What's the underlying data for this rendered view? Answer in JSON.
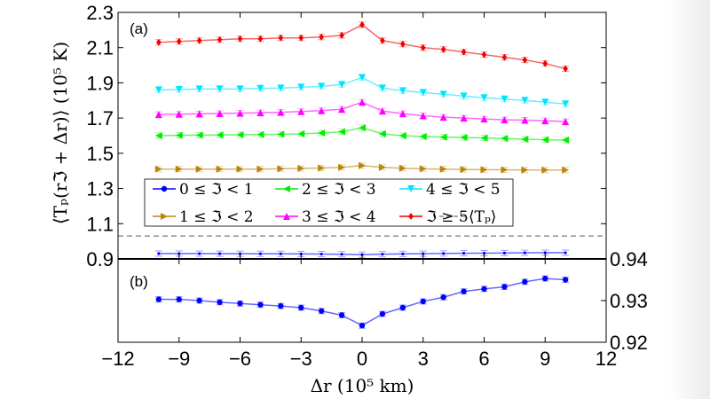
{
  "chart_data": [
    {
      "panel_label": "(a)",
      "type": "line",
      "xlim": [
        -12,
        12
      ],
      "ylim": [
        0.9,
        2.3
      ],
      "ylabel": "⟨Tₚ(rℑ + Δr)⟩ (10⁵ K)",
      "yticks": [
        "0.9",
        "1.1",
        "1.3",
        "1.5",
        "1.7",
        "1.9",
        "2.1",
        "2.3"
      ],
      "grid": false,
      "legend_placement": "lower-left inside",
      "x": [
        -10,
        -9,
        -8,
        -7,
        -6,
        -5,
        -4,
        -3,
        -2,
        -1,
        0,
        1,
        2,
        3,
        4,
        5,
        6,
        7,
        8,
        9,
        10
      ],
      "series": [
        {
          "name": "0 ≤ ℑ < 1",
          "color": "#0000ff",
          "marker": "circle",
          "values": [
            0.9303,
            0.9303,
            0.93,
            0.9296,
            0.9293,
            0.929,
            0.9287,
            0.9283,
            0.9275,
            0.9265,
            0.924,
            0.9268,
            0.9283,
            0.9298,
            0.9308,
            0.9322,
            0.9328,
            0.9333,
            0.9345,
            0.9353,
            0.935
          ]
        },
        {
          "name": "1 ≤ ℑ < 2",
          "color": "#b8860b",
          "marker": "triangle-right",
          "values": [
            1.41,
            1.41,
            1.41,
            1.41,
            1.41,
            1.41,
            1.412,
            1.414,
            1.416,
            1.42,
            1.43,
            1.42,
            1.415,
            1.412,
            1.41,
            1.408,
            1.407,
            1.406,
            1.405,
            1.405,
            1.405
          ]
        },
        {
          "name": "2 ≤ ℑ < 3",
          "color": "#00ee00",
          "marker": "triangle-left",
          "values": [
            1.6,
            1.602,
            1.603,
            1.604,
            1.605,
            1.606,
            1.608,
            1.61,
            1.615,
            1.622,
            1.645,
            1.61,
            1.6,
            1.595,
            1.592,
            1.59,
            1.587,
            1.584,
            1.58,
            1.577,
            1.575
          ]
        },
        {
          "name": "3 ≤ ℑ < 4",
          "color": "#ff00ff",
          "marker": "triangle-up",
          "values": [
            1.72,
            1.722,
            1.724,
            1.726,
            1.728,
            1.73,
            1.733,
            1.737,
            1.742,
            1.75,
            1.79,
            1.74,
            1.725,
            1.713,
            1.705,
            1.7,
            1.695,
            1.69,
            1.688,
            1.685,
            1.68
          ]
        },
        {
          "name": "4 ≤ ℑ < 5",
          "color": "#00e5ff",
          "marker": "triangle-down",
          "values": [
            1.86,
            1.862,
            1.865,
            1.865,
            1.865,
            1.868,
            1.87,
            1.875,
            1.88,
            1.89,
            1.93,
            1.87,
            1.855,
            1.845,
            1.835,
            1.825,
            1.815,
            1.808,
            1.8,
            1.79,
            1.78
          ]
        },
        {
          "name": "ℑ ≥ 5",
          "color": "#ee0000",
          "marker": "diamond",
          "values": [
            2.13,
            2.135,
            2.14,
            2.145,
            2.15,
            2.15,
            2.155,
            2.155,
            2.16,
            2.17,
            2.23,
            2.14,
            2.12,
            2.1,
            2.09,
            2.075,
            2.06,
            2.045,
            2.03,
            2.01,
            1.98
          ]
        }
      ],
      "reference_line": {
        "name": "⟨Tₚ⟩",
        "value": 1.03,
        "color": "#555555",
        "style": "dashed"
      }
    },
    {
      "panel_label": "(b)",
      "type": "line",
      "xlim": [
        -12,
        12
      ],
      "ylim": [
        0.92,
        0.94
      ],
      "y_axis_side": "right",
      "xlabel": "Δr (10⁵ km)",
      "xticks": [
        "−12",
        "−9",
        "−6",
        "−3",
        "0",
        "3",
        "6",
        "9",
        "12"
      ],
      "yticks": [
        "0.92",
        "0.93",
        "0.94"
      ],
      "x": [
        -10,
        -9,
        -8,
        -7,
        -6,
        -5,
        -4,
        -3,
        -2,
        -1,
        0,
        1,
        2,
        3,
        4,
        5,
        6,
        7,
        8,
        9,
        10
      ],
      "series": [
        {
          "color": "#0000ff",
          "marker": "circle",
          "values": [
            0.9303,
            0.9303,
            0.93,
            0.9296,
            0.9293,
            0.929,
            0.9287,
            0.9283,
            0.9275,
            0.9265,
            0.924,
            0.9268,
            0.9283,
            0.9298,
            0.9308,
            0.9322,
            0.9328,
            0.9333,
            0.9345,
            0.9353,
            0.935
          ]
        }
      ]
    }
  ]
}
